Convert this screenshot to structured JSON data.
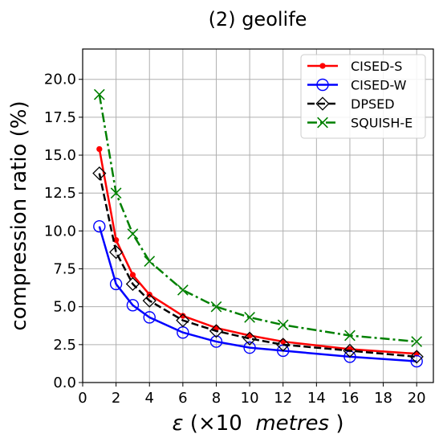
{
  "chart_data": {
    "type": "line",
    "title": "(2) geolife",
    "xlabel_symbol": "ε",
    "xlabel_rest_pre": "(×10 ",
    "xlabel_rest_em": "metres",
    "xlabel_rest_post": ")",
    "ylabel": "compression ratio (%)",
    "xlim": [
      0,
      21
    ],
    "ylim": [
      0,
      22
    ],
    "xticks": [
      0,
      2,
      4,
      6,
      8,
      10,
      12,
      14,
      16,
      18,
      20
    ],
    "xtick_labels": [
      "0",
      "2",
      "4",
      "6",
      "8",
      "10",
      "12",
      "14",
      "16",
      "18",
      "20"
    ],
    "yticks": [
      0,
      2.5,
      5,
      7.5,
      10,
      12.5,
      15,
      17.5,
      20
    ],
    "ytick_labels": [
      "0.0",
      "2.5",
      "5.0",
      "7.5",
      "10.0",
      "12.5",
      "15.0",
      "17.5",
      "20.0"
    ],
    "grid": true,
    "legend_position": "top-right",
    "x": [
      1,
      2,
      3,
      4,
      6,
      8,
      10,
      12,
      16,
      20
    ],
    "series": [
      {
        "name": "CISED-S",
        "color": "#ff0000",
        "marker": "dot",
        "linestyle": "solid",
        "values": [
          15.4,
          9.4,
          7.1,
          5.8,
          4.4,
          3.6,
          3.1,
          2.7,
          2.2,
          1.9
        ]
      },
      {
        "name": "CISED-W",
        "color": "#0000ff",
        "marker": "open-circle",
        "linestyle": "solid",
        "values": [
          10.3,
          6.5,
          5.1,
          4.3,
          3.3,
          2.7,
          2.3,
          2.1,
          1.7,
          1.4
        ]
      },
      {
        "name": "DPSED",
        "color": "#000000",
        "marker": "open-diamond",
        "linestyle": "dashed",
        "values": [
          13.8,
          8.6,
          6.5,
          5.4,
          4.1,
          3.4,
          2.9,
          2.5,
          2.1,
          1.7
        ]
      },
      {
        "name": "SQUISH-E",
        "color": "#008000",
        "marker": "x",
        "linestyle": "dashdot",
        "values": [
          19.0,
          12.5,
          9.8,
          8.0,
          6.1,
          5.0,
          4.3,
          3.8,
          3.1,
          2.7
        ]
      }
    ]
  }
}
